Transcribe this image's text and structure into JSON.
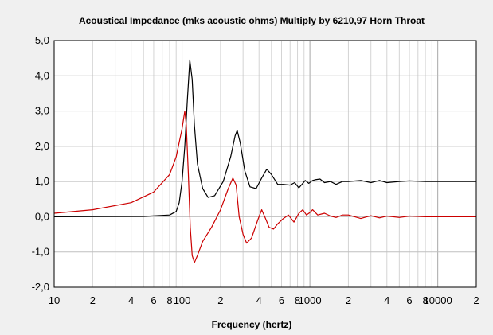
{
  "chart_data": {
    "type": "line",
    "title": "Acoustical Impedance (mks acoustic ohms)    Multiply by 6210,97    Horn Throat",
    "xlabel": "Frequency (hertz)",
    "ylabel": "",
    "x_scale": "log",
    "xlim": [
      10,
      20000
    ],
    "ylim": [
      -2.0,
      5.0
    ],
    "grid": true,
    "legend": "none",
    "y_ticks": [
      "-2,0",
      "-1,0",
      "0,0",
      "1,0",
      "2,0",
      "3,0",
      "4,0",
      "5,0"
    ],
    "x_ticks": [
      {
        "v": 10,
        "label": "10"
      },
      {
        "v": 20,
        "label": "2"
      },
      {
        "v": 40,
        "label": "4"
      },
      {
        "v": 60,
        "label": "6"
      },
      {
        "v": 80,
        "label": "8"
      },
      {
        "v": 100,
        "label": "100"
      },
      {
        "v": 200,
        "label": "2"
      },
      {
        "v": 400,
        "label": "4"
      },
      {
        "v": 600,
        "label": "6"
      },
      {
        "v": 800,
        "label": "8"
      },
      {
        "v": 1000,
        "label": "1000"
      },
      {
        "v": 2000,
        "label": "2"
      },
      {
        "v": 4000,
        "label": "4"
      },
      {
        "v": 6000,
        "label": "6"
      },
      {
        "v": 8000,
        "label": "8"
      },
      {
        "v": 10000,
        "label": "10000"
      },
      {
        "v": 20000,
        "label": "2"
      }
    ],
    "series": [
      {
        "color": "#000000",
        "points": [
          [
            10,
            0.0
          ],
          [
            50,
            0.01
          ],
          [
            80,
            0.05
          ],
          [
            90,
            0.15
          ],
          [
            95,
            0.4
          ],
          [
            100,
            1.0
          ],
          [
            105,
            2.0
          ],
          [
            110,
            3.3
          ],
          [
            115,
            4.45
          ],
          [
            120,
            3.9
          ],
          [
            125,
            2.6
          ],
          [
            132,
            1.5
          ],
          [
            145,
            0.8
          ],
          [
            160,
            0.55
          ],
          [
            180,
            0.6
          ],
          [
            210,
            1.0
          ],
          [
            240,
            1.7
          ],
          [
            260,
            2.3
          ],
          [
            270,
            2.45
          ],
          [
            285,
            2.1
          ],
          [
            310,
            1.3
          ],
          [
            340,
            0.85
          ],
          [
            380,
            0.8
          ],
          [
            420,
            1.1
          ],
          [
            460,
            1.35
          ],
          [
            500,
            1.2
          ],
          [
            560,
            0.92
          ],
          [
            620,
            0.92
          ],
          [
            700,
            0.9
          ],
          [
            760,
            0.97
          ],
          [
            820,
            0.82
          ],
          [
            880,
            0.95
          ],
          [
            920,
            1.03
          ],
          [
            980,
            0.95
          ],
          [
            1050,
            1.03
          ],
          [
            1100,
            1.05
          ],
          [
            1200,
            1.07
          ],
          [
            1300,
            0.97
          ],
          [
            1450,
            1.0
          ],
          [
            1600,
            0.92
          ],
          [
            1800,
            1.0
          ],
          [
            2000,
            1.0
          ],
          [
            2500,
            1.03
          ],
          [
            3000,
            0.97
          ],
          [
            3500,
            1.03
          ],
          [
            4000,
            0.97
          ],
          [
            5000,
            1.0
          ],
          [
            6000,
            1.02
          ],
          [
            8000,
            1.0
          ],
          [
            10000,
            1.0
          ],
          [
            14000,
            1.0
          ],
          [
            20000,
            1.0
          ]
        ]
      },
      {
        "color": "#cc0000",
        "points": [
          [
            10,
            0.1
          ],
          [
            20,
            0.2
          ],
          [
            40,
            0.4
          ],
          [
            60,
            0.7
          ],
          [
            80,
            1.2
          ],
          [
            90,
            1.7
          ],
          [
            100,
            2.5
          ],
          [
            105,
            3.0
          ],
          [
            108,
            2.6
          ],
          [
            112,
            1.2
          ],
          [
            116,
            -0.3
          ],
          [
            120,
            -1.1
          ],
          [
            125,
            -1.3
          ],
          [
            132,
            -1.1
          ],
          [
            145,
            -0.7
          ],
          [
            170,
            -0.3
          ],
          [
            200,
            0.2
          ],
          [
            230,
            0.8
          ],
          [
            250,
            1.1
          ],
          [
            265,
            0.9
          ],
          [
            280,
            0.0
          ],
          [
            300,
            -0.5
          ],
          [
            320,
            -0.75
          ],
          [
            350,
            -0.6
          ],
          [
            390,
            -0.1
          ],
          [
            420,
            0.2
          ],
          [
            450,
            -0.05
          ],
          [
            480,
            -0.3
          ],
          [
            520,
            -0.35
          ],
          [
            560,
            -0.2
          ],
          [
            620,
            -0.05
          ],
          [
            680,
            0.05
          ],
          [
            750,
            -0.15
          ],
          [
            820,
            0.1
          ],
          [
            880,
            0.2
          ],
          [
            940,
            0.05
          ],
          [
            1000,
            0.12
          ],
          [
            1050,
            0.2
          ],
          [
            1150,
            0.05
          ],
          [
            1300,
            0.1
          ],
          [
            1450,
            0.02
          ],
          [
            1600,
            -0.02
          ],
          [
            1800,
            0.05
          ],
          [
            2000,
            0.05
          ],
          [
            2500,
            -0.05
          ],
          [
            3000,
            0.03
          ],
          [
            3500,
            -0.03
          ],
          [
            4000,
            0.02
          ],
          [
            5000,
            -0.02
          ],
          [
            6000,
            0.02
          ],
          [
            8000,
            0.0
          ],
          [
            10000,
            0.0
          ],
          [
            14000,
            0.0
          ],
          [
            20000,
            0.0
          ]
        ]
      }
    ]
  }
}
